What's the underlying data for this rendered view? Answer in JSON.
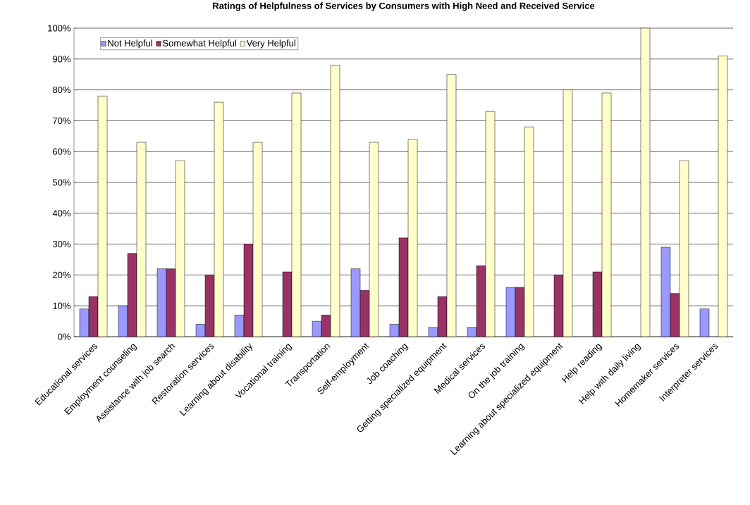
{
  "chart_data": {
    "type": "bar",
    "title": "Ratings of Helpfulness of Services by Consumers with High Need and Received Service",
    "categories": [
      "Educational services",
      "Employment counseling",
      "Assistance with job search",
      "Restoration services",
      "Learning about disability",
      "Vocational training",
      "Transportation",
      "Self-employment",
      "Job coaching",
      "Getting specialized equipment",
      "Medical services",
      "On the job training",
      "Learning about specialized equipment",
      "Help reading",
      "Help with daily living",
      "Homemaker services",
      "Interpreter services"
    ],
    "series": [
      {
        "name": "Not Helpful",
        "color": "#9999ff",
        "values": [
          9,
          10,
          22,
          4,
          7,
          null,
          5,
          22,
          4,
          3,
          3,
          16,
          null,
          null,
          null,
          29,
          9
        ]
      },
      {
        "name": "Somewhat Helpful",
        "color": "#993366",
        "values": [
          13,
          27,
          22,
          20,
          30,
          21,
          7,
          15,
          32,
          13,
          23,
          16,
          20,
          21,
          null,
          14,
          null
        ]
      },
      {
        "name": "Very Helpful",
        "color": "#ffffcc",
        "values": [
          78,
          63,
          57,
          76,
          63,
          79,
          88,
          63,
          64,
          85,
          73,
          68,
          80,
          79,
          100,
          57,
          91
        ]
      }
    ],
    "ylim": [
      0,
      100
    ],
    "yticks": [
      {
        "value": 0,
        "label": "0%"
      },
      {
        "value": 10,
        "label": "10%"
      },
      {
        "value": 20,
        "label": "20%"
      },
      {
        "value": 30,
        "label": "30%"
      },
      {
        "value": 40,
        "label": "40%"
      },
      {
        "value": 50,
        "label": "50%"
      },
      {
        "value": 60,
        "label": "60%"
      },
      {
        "value": 70,
        "label": "70%"
      },
      {
        "value": 80,
        "label": "80%"
      },
      {
        "value": 90,
        "label": "90%"
      },
      {
        "value": 100,
        "label": "100%"
      }
    ],
    "grid": "y",
    "legend": "top left"
  }
}
